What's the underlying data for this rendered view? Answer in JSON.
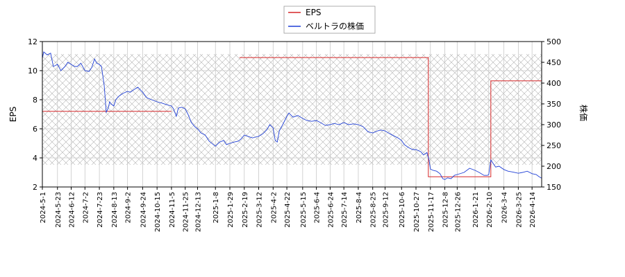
{
  "chart_data": {
    "type": "line",
    "title": "",
    "legend": {
      "placement": "top-center",
      "items": [
        {
          "label": "EPS",
          "color": "#d62728"
        },
        {
          "label": "ベルトラの株価",
          "color": "#1f3fd6"
        }
      ]
    },
    "axes": {
      "left": {
        "label": "EPS",
        "ylim": [
          2,
          12
        ],
        "ticks": [
          2,
          4,
          6,
          8,
          10,
          12
        ]
      },
      "right": {
        "label": "株価",
        "ylim": [
          150,
          500
        ],
        "ticks": [
          150,
          200,
          250,
          300,
          350,
          400,
          450,
          500
        ]
      },
      "x": {
        "range": [
          "2024-05-01",
          "2026-04-28"
        ],
        "ticks": [
          "2024-5-1",
          "2024-5-23",
          "2024-6-12",
          "2024-7-2",
          "2024-7-23",
          "2024-8-13",
          "2024-9-2",
          "2024-9-24",
          "2024-10-15",
          "2024-11-5",
          "2024-11-25",
          "2024-12-13",
          "2025-1-8",
          "2025-1-29",
          "2025-2-19",
          "2025-3-12",
          "2025-4-2",
          "2025-4-22",
          "2025-5-15",
          "2025-6-4",
          "2025-6-24",
          "2025-7-14",
          "2025-8-4",
          "2025-8-25",
          "2025-9-12",
          "2025-10-6",
          "2025-10-27",
          "2025-11-17",
          "2025-12-8",
          "2025-12-26",
          "2026-1-21",
          "2026-2-10",
          "2026-3-4",
          "2026-3-25",
          "2026-4-14"
        ]
      }
    },
    "grid": true,
    "series": [
      {
        "name": "EPS",
        "axis": "left",
        "color": "#d62728",
        "segments": [
          [
            [
              "2024-05-01",
              7.2
            ],
            [
              "2024-11-05",
              7.2
            ]
          ],
          [
            [
              "2025-02-12",
              10.9
            ],
            [
              "2025-11-14",
              10.9
            ],
            [
              "2025-11-14",
              2.7
            ],
            [
              "2026-02-13",
              2.7
            ],
            [
              "2026-02-13",
              9.3
            ],
            [
              "2026-04-28",
              9.3
            ]
          ]
        ]
      },
      {
        "name": "ベルトラの株価",
        "axis": "right",
        "color": "#1f3fd6",
        "points": [
          [
            "2024-05-01",
            460
          ],
          [
            "2024-05-03",
            475
          ],
          [
            "2024-05-08",
            468
          ],
          [
            "2024-05-13",
            472
          ],
          [
            "2024-05-17",
            440
          ],
          [
            "2024-05-23",
            445
          ],
          [
            "2024-05-28",
            430
          ],
          [
            "2024-06-03",
            440
          ],
          [
            "2024-06-07",
            450
          ],
          [
            "2024-06-12",
            445
          ],
          [
            "2024-06-17",
            440
          ],
          [
            "2024-06-21",
            440
          ],
          [
            "2024-06-26",
            448
          ],
          [
            "2024-07-02",
            430
          ],
          [
            "2024-07-08",
            428
          ],
          [
            "2024-07-12",
            438
          ],
          [
            "2024-07-16",
            458
          ],
          [
            "2024-07-19",
            448
          ],
          [
            "2024-07-23",
            445
          ],
          [
            "2024-07-26",
            440
          ],
          [
            "2024-07-30",
            395
          ],
          [
            "2024-08-02",
            330
          ],
          [
            "2024-08-05",
            340
          ],
          [
            "2024-08-07",
            355
          ],
          [
            "2024-08-09",
            350
          ],
          [
            "2024-08-13",
            345
          ],
          [
            "2024-08-16",
            360
          ],
          [
            "2024-08-20",
            368
          ],
          [
            "2024-08-26",
            375
          ],
          [
            "2024-09-02",
            380
          ],
          [
            "2024-09-06",
            378
          ],
          [
            "2024-09-12",
            385
          ],
          [
            "2024-09-17",
            390
          ],
          [
            "2024-09-24",
            378
          ],
          [
            "2024-09-30",
            365
          ],
          [
            "2024-10-07",
            360
          ],
          [
            "2024-10-15",
            355
          ],
          [
            "2024-10-22",
            352
          ],
          [
            "2024-10-29",
            348
          ],
          [
            "2024-11-05",
            345
          ],
          [
            "2024-11-08",
            338
          ],
          [
            "2024-11-12",
            320
          ],
          [
            "2024-11-15",
            340
          ],
          [
            "2024-11-20",
            342
          ],
          [
            "2024-11-25",
            338
          ],
          [
            "2024-11-29",
            325
          ],
          [
            "2024-12-04",
            305
          ],
          [
            "2024-12-09",
            295
          ],
          [
            "2024-12-13",
            290
          ],
          [
            "2024-12-18",
            280
          ],
          [
            "2024-12-24",
            275
          ],
          [
            "2024-12-30",
            260
          ],
          [
            "2025-01-08",
            248
          ],
          [
            "2025-01-14",
            258
          ],
          [
            "2025-01-20",
            262
          ],
          [
            "2025-01-24",
            252
          ],
          [
            "2025-01-29",
            255
          ],
          [
            "2025-02-04",
            258
          ],
          [
            "2025-02-10",
            260
          ],
          [
            "2025-02-14",
            265
          ],
          [
            "2025-02-19",
            275
          ],
          [
            "2025-02-24",
            272
          ],
          [
            "2025-03-03",
            268
          ],
          [
            "2025-03-07",
            270
          ],
          [
            "2025-03-12",
            272
          ],
          [
            "2025-03-18",
            278
          ],
          [
            "2025-03-24",
            288
          ],
          [
            "2025-03-28",
            300
          ],
          [
            "2025-04-02",
            292
          ],
          [
            "2025-04-05",
            262
          ],
          [
            "2025-04-08",
            258
          ],
          [
            "2025-04-11",
            285
          ],
          [
            "2025-04-16",
            300
          ],
          [
            "2025-04-22",
            320
          ],
          [
            "2025-04-25",
            328
          ],
          [
            "2025-05-01",
            318
          ],
          [
            "2025-05-08",
            322
          ],
          [
            "2025-05-15",
            315
          ],
          [
            "2025-05-21",
            310
          ],
          [
            "2025-05-28",
            308
          ],
          [
            "2025-06-04",
            310
          ],
          [
            "2025-06-10",
            305
          ],
          [
            "2025-06-17",
            298
          ],
          [
            "2025-06-24",
            300
          ],
          [
            "2025-06-30",
            303
          ],
          [
            "2025-07-07",
            300
          ],
          [
            "2025-07-14",
            305
          ],
          [
            "2025-07-21",
            300
          ],
          [
            "2025-07-28",
            302
          ],
          [
            "2025-08-04",
            300
          ],
          [
            "2025-08-11",
            295
          ],
          [
            "2025-08-18",
            283
          ],
          [
            "2025-08-25",
            280
          ],
          [
            "2025-09-01",
            285
          ],
          [
            "2025-09-06",
            287
          ],
          [
            "2025-09-12",
            285
          ],
          [
            "2025-09-19",
            278
          ],
          [
            "2025-09-26",
            272
          ],
          [
            "2025-10-01",
            268
          ],
          [
            "2025-10-06",
            262
          ],
          [
            "2025-10-10",
            252
          ],
          [
            "2025-10-16",
            245
          ],
          [
            "2025-10-22",
            240
          ],
          [
            "2025-10-27",
            240
          ],
          [
            "2025-11-03",
            235
          ],
          [
            "2025-11-07",
            227
          ],
          [
            "2025-11-12",
            233
          ],
          [
            "2025-11-15",
            215
          ],
          [
            "2025-11-17",
            193
          ],
          [
            "2025-11-21",
            190
          ],
          [
            "2025-11-26",
            188
          ],
          [
            "2025-12-01",
            182
          ],
          [
            "2025-12-05",
            170
          ],
          [
            "2025-12-08",
            168
          ],
          [
            "2025-12-12",
            172
          ],
          [
            "2025-12-17",
            170
          ],
          [
            "2025-12-22",
            178
          ],
          [
            "2025-12-26",
            180
          ],
          [
            "2026-01-05",
            185
          ],
          [
            "2026-01-13",
            195
          ],
          [
            "2026-01-21",
            190
          ],
          [
            "2026-01-27",
            185
          ],
          [
            "2026-02-03",
            178
          ],
          [
            "2026-02-08",
            178
          ],
          [
            "2026-02-10",
            180
          ],
          [
            "2026-02-13",
            215
          ],
          [
            "2026-02-17",
            205
          ],
          [
            "2026-02-20",
            198
          ],
          [
            "2026-02-25",
            200
          ],
          [
            "2026-03-04",
            192
          ],
          [
            "2026-03-10",
            188
          ],
          [
            "2026-03-17",
            186
          ],
          [
            "2026-03-25",
            183
          ],
          [
            "2026-03-31",
            185
          ],
          [
            "2026-04-07",
            188
          ],
          [
            "2026-04-14",
            182
          ],
          [
            "2026-04-20",
            180
          ],
          [
            "2026-04-24",
            175
          ],
          [
            "2026-04-28",
            171
          ]
        ]
      }
    ]
  }
}
